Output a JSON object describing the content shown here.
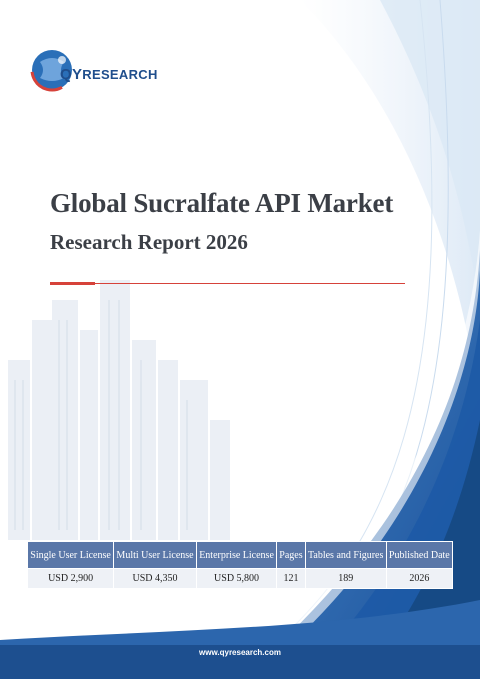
{
  "brand": {
    "logo_prefix": "QY",
    "logo_suffix": "RESEARCH"
  },
  "report": {
    "title_line1": "Global Sucralfate API Market",
    "title_line2": "Research Report 2026"
  },
  "pricing_table": {
    "headers": [
      "Single User License",
      "Multi User License",
      "Enterprise License",
      "Pages",
      "Tables and Figures",
      "Published Date"
    ],
    "values": [
      "USD 2,900",
      "USD 4,350",
      "USD 5,800",
      "121",
      "189",
      "2026"
    ]
  },
  "footer": {
    "website": "www.qyresearch.com"
  },
  "colors": {
    "accent_red": "#d6423a",
    "header_blue": "#5a77a8",
    "deep_blue": "#1f4e8c",
    "title_gray": "#3b3f46"
  }
}
